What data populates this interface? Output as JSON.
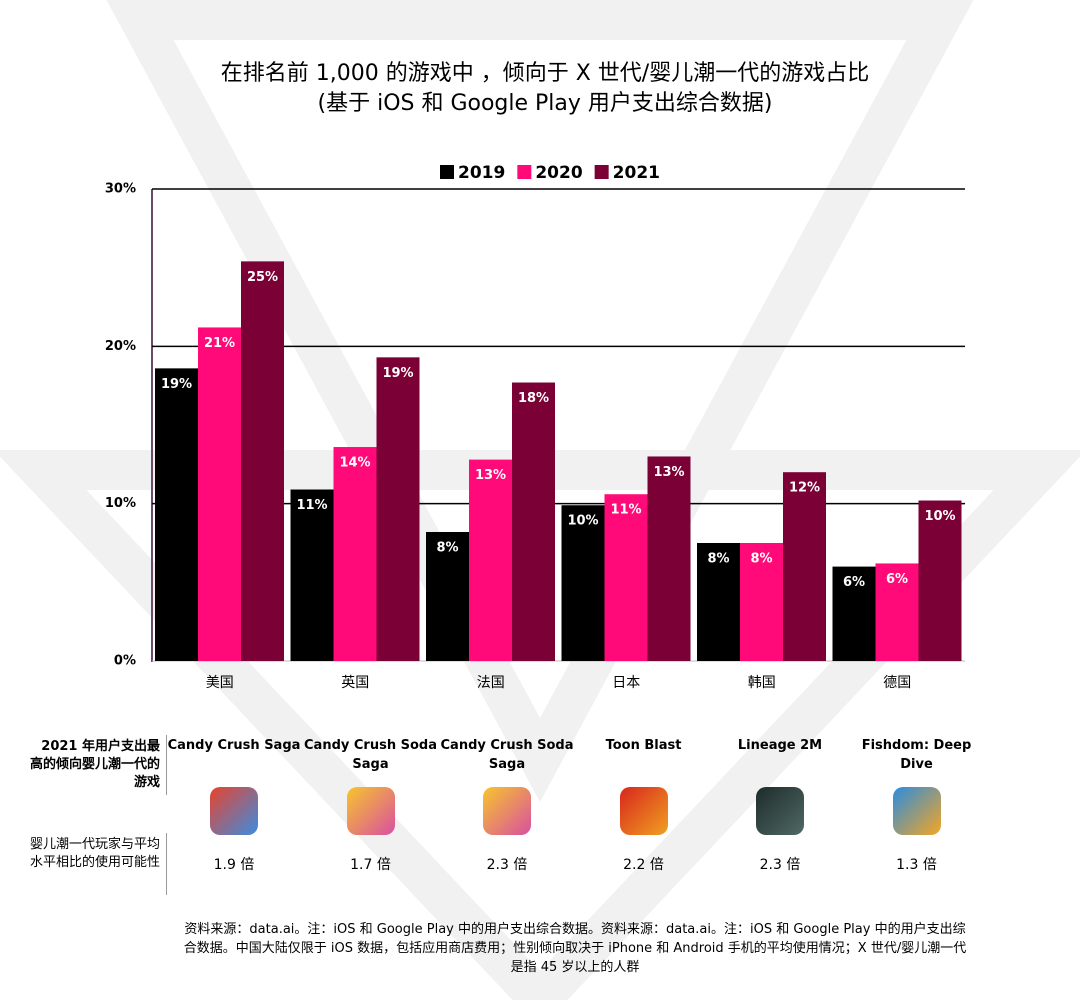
{
  "chart_data": {
    "type": "bar",
    "title": [
      "在排名前 1,000 的游戏中 ，倾向于 X 世代/婴儿潮一代的游戏占比",
      "(基于 iOS 和 Google Play 用户支出综合数据)"
    ],
    "categories": [
      "美国",
      "英国",
      "法国",
      "日本",
      "韩国",
      "德国"
    ],
    "series": [
      {
        "name": "2019",
        "color": "#000000",
        "values": [
          18.6,
          10.9,
          8.2,
          9.9,
          7.5,
          6.0
        ],
        "value_labels": [
          "19%",
          "11%",
          "8%",
          "10%",
          "8%",
          "6%"
        ]
      },
      {
        "name": "2020",
        "color": "#ff0a78",
        "values": [
          21.2,
          13.6,
          12.8,
          10.6,
          7.5,
          6.2
        ],
        "value_labels": [
          "21%",
          "14%",
          "13%",
          "11%",
          "8%",
          "6%"
        ]
      },
      {
        "name": "2021",
        "color": "#7a0035",
        "values": [
          25.4,
          19.3,
          17.7,
          13.0,
          12.0,
          10.2
        ],
        "value_labels": [
          "25%",
          "19%",
          "18%",
          "13%",
          "12%",
          "10%"
        ]
      }
    ],
    "ylim": [
      0,
      30
    ],
    "yticks": [
      {
        "value": 0,
        "label": "0%"
      },
      {
        "value": 10,
        "label": "10%"
      },
      {
        "value": 20,
        "label": "20%"
      },
      {
        "value": 30,
        "label": "30%"
      }
    ],
    "grid": true,
    "legend": "top"
  },
  "table": {
    "row_headers": [
      "2021 年用户支出最高的倾向婴儿潮一代的游戏",
      "婴儿潮一代玩家与平均水平相比的使用可能性"
    ],
    "games": [
      "Candy Crush Saga",
      "Candy Crush Soda Saga",
      "Candy Crush Soda Saga",
      "Toon Blast",
      "Lineage 2M",
      "Fishdom: Deep Dive"
    ],
    "ratios": [
      "1.9 倍",
      "1.7 倍",
      "2.3 倍",
      "2.2 倍",
      "2.3 倍",
      "1.3 倍"
    ]
  },
  "footer": "资料来源：data.ai。注：iOS 和 Google Play 中的用户支出综合数据。资料来源：data.ai。注：iOS 和 Google Play 中的用户支出综合数据。中国大陆仅限于 iOS 数据，包括应用商店费用；性别倾向取决于 iPhone 和 Android 手机的平均使用情况；X 世代/婴儿潮一代是指 45 岁以上的人群"
}
